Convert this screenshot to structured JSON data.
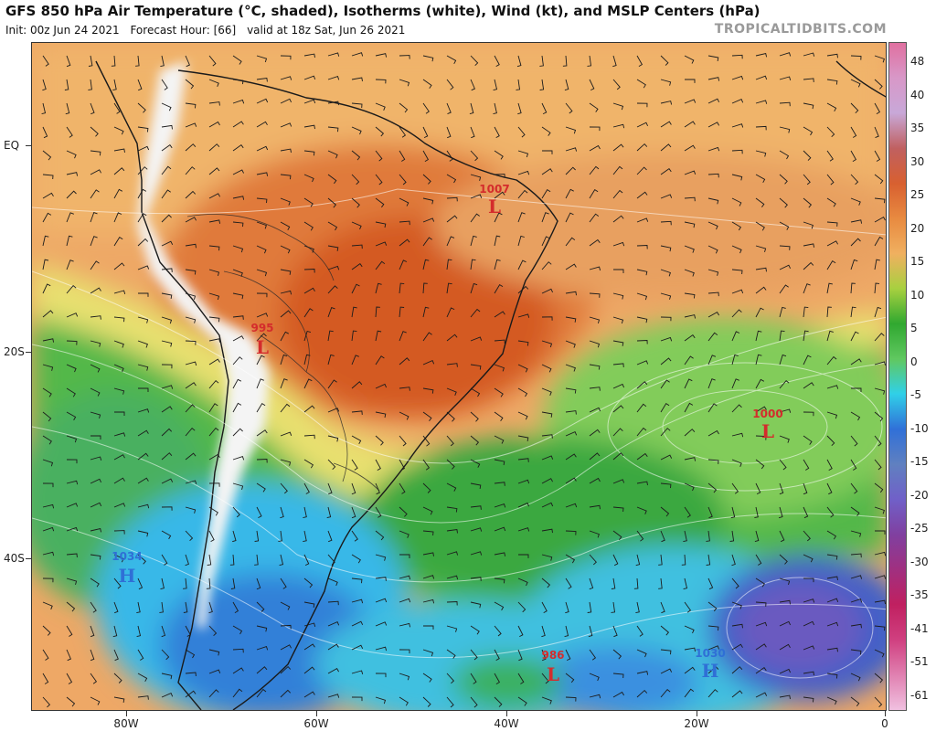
{
  "header": {
    "title": "GFS 850 hPa Air Temperature (°C, shaded), Isotherms (white), Wind (kt), and MSLP Centers (hPa)",
    "init": "Init: 00z Jun 24 2021",
    "forecast_hour": "Forecast Hour: [66]",
    "valid": "valid at 18z Sat, Jun 26 2021",
    "watermark": "TROPICALTIDBITS.COM"
  },
  "axes": {
    "lat_labels": [
      "EQ",
      "20S",
      "40S"
    ],
    "lon_labels": [
      "80W",
      "60W",
      "40W",
      "20W",
      "0"
    ]
  },
  "colorbar": {
    "labels": [
      "48",
      "40",
      "35",
      "30",
      "25",
      "20",
      "15",
      "10",
      "5",
      "0",
      "-5",
      "-10",
      "-15",
      "-20",
      "-25",
      "-30",
      "-35",
      "-41",
      "-51",
      "-61"
    ],
    "colors": [
      "#e070a0",
      "#d898c8",
      "#c8a8d8",
      "#c06060",
      "#d86030",
      "#e88a40",
      "#f0b060",
      "#a8d040",
      "#30a830",
      "#60c860",
      "#30d0e8",
      "#3070d8",
      "#6080c0",
      "#7060c8",
      "#8040a0",
      "#a03080",
      "#c02060",
      "#d04080",
      "#e080b0",
      "#f0c0e0"
    ]
  },
  "pressure_centers": [
    {
      "value": "1007",
      "letter": "L",
      "color": "#d42c2c"
    },
    {
      "value": "995",
      "letter": "L",
      "color": "#d42c2c"
    },
    {
      "value": "1000",
      "letter": "L",
      "color": "#d42c2c"
    },
    {
      "value": "1034",
      "letter": "H",
      "color": "#2f6fd6"
    },
    {
      "value": "986",
      "letter": "L",
      "color": "#d42c2c"
    },
    {
      "value": "1030",
      "letter": "H",
      "color": "#2f6fd6"
    }
  ]
}
